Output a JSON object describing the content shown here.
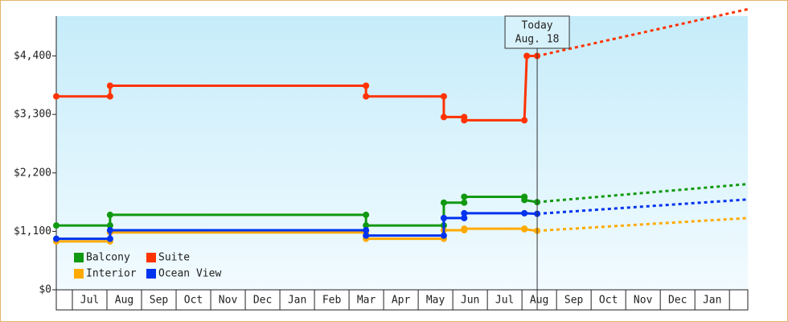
{
  "chart_data": {
    "type": "line",
    "categories": [
      "Jul",
      "Aug",
      "Sep",
      "Oct",
      "Nov",
      "Dec",
      "Jan",
      "Feb",
      "Mar",
      "Apr",
      "May",
      "Jun",
      "Jul",
      "Aug",
      "Sep",
      "Oct",
      "Nov",
      "Dec",
      "Jan"
    ],
    "xlim": [
      -0.465,
      19.53
    ],
    "ylim": [
      0,
      5150
    ],
    "yticks": [
      {
        "value": 0,
        "label": "$0"
      },
      {
        "value": 1100,
        "label": "$1,100"
      },
      {
        "value": 2200,
        "label": "$2,200"
      },
      {
        "value": 3300,
        "label": "$3,300"
      },
      {
        "value": 4400,
        "label": "$4,400"
      }
    ],
    "today": {
      "x": 13.44,
      "label": [
        "Today",
        "Aug. 18"
      ]
    },
    "legend": "lower left",
    "series": [
      {
        "name": "Balcony",
        "color": "#119911",
        "x": [
          -0.465,
          1.09,
          1.09,
          8.49,
          8.49,
          10.74,
          10.74,
          11.33,
          11.33,
          13.07,
          13.07,
          13.44
        ],
        "values": [
          1210,
          1210,
          1410,
          1410,
          1210,
          1210,
          1640,
          1640,
          1750,
          1750,
          1690,
          1650
        ],
        "projection": {
          "x": [
            13.44,
            19.53
          ],
          "values": [
            1650,
            1990
          ]
        }
      },
      {
        "name": "Suite",
        "color": "#ff3300",
        "x": [
          -0.465,
          1.09,
          1.09,
          8.49,
          8.49,
          10.74,
          10.74,
          11.33,
          11.33,
          13.07,
          13.14,
          13.44
        ],
        "values": [
          3640,
          3640,
          3840,
          3840,
          3640,
          3640,
          3250,
          3250,
          3190,
          3190,
          4400,
          4400
        ],
        "projection": {
          "x": [
            13.44,
            19.53
          ],
          "values": [
            4400,
            5280
          ]
        }
      },
      {
        "name": "Interior",
        "color": "#ffaa00",
        "x": [
          -0.465,
          1.09,
          1.09,
          8.49,
          8.49,
          10.74,
          10.74,
          11.33,
          11.33,
          13.07,
          13.07,
          13.44
        ],
        "values": [
          910,
          910,
          1080,
          1080,
          960,
          960,
          1120,
          1120,
          1150,
          1150,
          1140,
          1110
        ],
        "projection": {
          "x": [
            13.44,
            19.53
          ],
          "values": [
            1110,
            1350
          ]
        }
      },
      {
        "name": "Ocean View",
        "color": "#0033ee",
        "x": [
          -0.465,
          1.09,
          1.09,
          8.49,
          8.49,
          10.74,
          10.74,
          11.33,
          11.33,
          13.07,
          13.44
        ],
        "values": [
          960,
          960,
          1120,
          1120,
          1020,
          1020,
          1350,
          1350,
          1440,
          1440,
          1430
        ],
        "projection": {
          "x": [
            13.44,
            19.53
          ],
          "values": [
            1430,
            1700
          ]
        }
      }
    ]
  }
}
